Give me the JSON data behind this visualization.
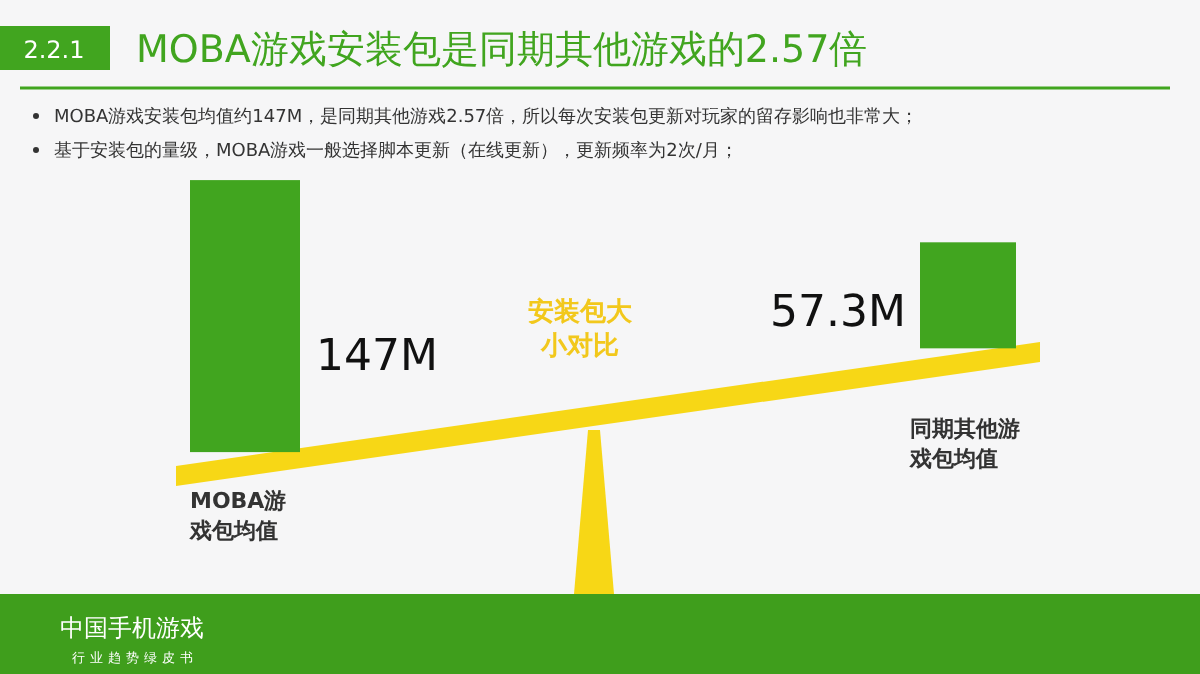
{
  "chart_data": {
    "type": "other",
    "title": "MOBA游戏安装包是同期其他游戏的2.57倍",
    "categories": [
      "MOBA游戏包均值",
      "同期其他游戏包均值"
    ],
    "values": [
      147,
      57.3
    ],
    "value_labels": [
      "147M",
      "57.3M"
    ],
    "color": "#41a51f",
    "annotations": [
      "2.2.1",
      "MOBA游戏安装包均值约147M，是同期其他游戏2.57倍，所以每次安装包更新对玩家的留存影响也非常大；",
      "基于安装包的量级，MOBA游戏一般选择脚本更新（在线更新），更新频率为2次/月；",
      "安装包大小对比",
      "中国手机游戏",
      "行业趋势绿皮书"
    ]
  }
}
